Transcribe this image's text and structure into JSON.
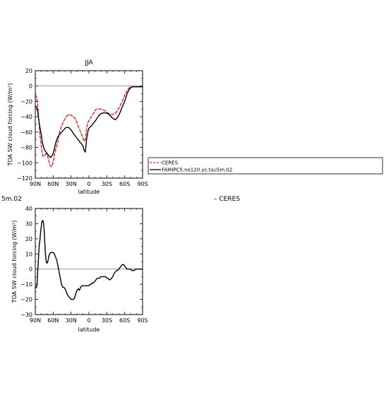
{
  "chart_data": [
    {
      "type": "line",
      "title": "JJA",
      "xlabel": "latitude",
      "ylabel": "TOA SW cloud forcing (W/m²)",
      "xlim": [
        90,
        -90
      ],
      "ylim": [
        -120,
        20
      ],
      "x_ticks": [
        90,
        60,
        30,
        0,
        -30,
        -60,
        -90
      ],
      "x_tick_labels": [
        "90N",
        "60N",
        "30N",
        "0",
        "30S",
        "60S",
        "90S"
      ],
      "y_ticks": [
        -120,
        -100,
        -80,
        -60,
        -40,
        -20,
        0,
        20
      ],
      "y_tick_labels": [
        "−120",
        "−100",
        "−80",
        "−60",
        "−40",
        "−20",
        "0",
        "20"
      ],
      "legend": [
        "CERES",
        "FAMIPC5.ne120.ys.tau5m.02"
      ],
      "series": [
        {
          "name": "CERES",
          "color": "#e8201c",
          "dash": "dashed",
          "x": [
            90,
            88,
            86,
            84,
            82,
            80,
            78,
            76,
            74,
            72,
            70,
            68,
            66,
            64,
            62,
            60,
            58,
            56,
            54,
            52,
            50,
            46,
            42,
            38,
            34,
            30,
            26,
            22,
            18,
            14,
            10,
            8,
            6,
            4,
            2,
            0,
            -4,
            -8,
            -12,
            -16,
            -20,
            -24,
            -28,
            -32,
            -36,
            -40,
            -44,
            -48,
            -52,
            -56,
            -60,
            -64,
            -68,
            -72,
            -76,
            -80,
            -84,
            -88,
            -90
          ],
          "y": [
            -12,
            -14,
            -25,
            -45,
            -65,
            -78,
            -90,
            -92,
            -90,
            -88,
            -90,
            -95,
            -102,
            -105,
            -104,
            -98,
            -90,
            -83,
            -78,
            -72,
            -62,
            -52,
            -45,
            -40,
            -37,
            -38,
            -40,
            -44,
            -52,
            -60,
            -68,
            -72,
            -70,
            -55,
            -48,
            -45,
            -40,
            -35,
            -30,
            -30,
            -30,
            -31,
            -33,
            -35,
            -37,
            -37,
            -36,
            -32,
            -26,
            -20,
            -12,
            -6,
            -2,
            -1,
            -1,
            -1,
            -1,
            -1,
            -1
          ]
        },
        {
          "name": "FAMIPC5.ne120.ys.tau5m.02",
          "color": "#000000",
          "dash": "solid",
          "x": [
            90,
            88,
            86,
            84,
            82,
            80,
            78,
            76,
            74,
            72,
            70,
            68,
            66,
            64,
            62,
            60,
            58,
            56,
            54,
            52,
            50,
            46,
            42,
            40,
            38,
            36,
            34,
            30,
            26,
            22,
            18,
            14,
            10,
            8,
            6,
            4,
            2,
            0,
            -4,
            -8,
            -12,
            -16,
            -20,
            -24,
            -28,
            -32,
            -36,
            -40,
            -44,
            -48,
            -52,
            -56,
            -60,
            -64,
            -68,
            -72,
            -76,
            -80,
            -84,
            -88,
            -90
          ],
          "y": [
            -26,
            -27,
            -33,
            -45,
            -55,
            -63,
            -74,
            -80,
            -84,
            -86,
            -88,
            -90,
            -92,
            -93,
            -91,
            -88,
            -82,
            -75,
            -70,
            -66,
            -64,
            -60,
            -57,
            -55,
            -54,
            -54,
            -54,
            -57,
            -62,
            -66,
            -70,
            -74,
            -78,
            -84,
            -86,
            -70,
            -60,
            -55,
            -52,
            -48,
            -44,
            -39,
            -36,
            -35,
            -35,
            -36,
            -39,
            -42,
            -44,
            -41,
            -35,
            -27,
            -20,
            -10,
            -4,
            -1,
            -1,
            -1,
            -1,
            -1,
            -1
          ]
        }
      ]
    },
    {
      "type": "line",
      "title": "5m.02",
      "title_right": "– CERES",
      "xlabel": "latitude",
      "ylabel": "TOA SW cloud forcing (W/m²)",
      "xlim": [
        90,
        -90
      ],
      "ylim": [
        -30,
        40
      ],
      "x_ticks": [
        90,
        60,
        30,
        0,
        -30,
        -60,
        -90
      ],
      "x_tick_labels": [
        "90N",
        "60N",
        "30N",
        "0",
        "30S",
        "60S",
        "90S"
      ],
      "y_ticks": [
        -30,
        -20,
        -10,
        0,
        10,
        20,
        30,
        40
      ],
      "y_tick_labels": [
        "−30",
        "−20",
        "−10",
        "0",
        "10",
        "20",
        "30",
        "40"
      ],
      "series": [
        {
          "color": "#000000",
          "dash": "solid",
          "x": [
            90,
            89,
            88,
            87,
            86,
            85,
            84,
            83,
            82,
            81,
            80,
            79,
            78,
            77,
            76,
            75,
            74,
            73,
            72,
            71,
            70,
            69,
            68,
            67,
            66,
            64,
            62,
            60,
            58,
            56,
            54,
            52,
            50,
            48,
            46,
            44,
            42,
            40,
            38,
            36,
            34,
            32,
            30,
            28,
            26,
            24,
            22,
            20,
            18,
            16,
            14,
            12,
            10,
            8,
            6,
            4,
            2,
            0,
            -2,
            -4,
            -6,
            -8,
            -10,
            -12,
            -14,
            -16,
            -18,
            -20,
            -22,
            -24,
            -26,
            -28,
            -30,
            -32,
            -34,
            -36,
            -38,
            -40,
            -42,
            -44,
            -46,
            -48,
            -50,
            -52,
            -54,
            -56,
            -58,
            -60,
            -62,
            -64,
            -66,
            -68,
            -70,
            -72,
            -74,
            -76,
            -78,
            -80,
            -82,
            -84,
            -86,
            -88,
            -90
          ],
          "y": [
            -13,
            -12,
            -12,
            -10,
            -2,
            5,
            12,
            17,
            20,
            25,
            28,
            31,
            32,
            32,
            30,
            25,
            17,
            10,
            6,
            4,
            4,
            5,
            7,
            9,
            10,
            11,
            11,
            11,
            10,
            8,
            6,
            2,
            -2,
            -6,
            -10,
            -12,
            -12,
            -13,
            -15,
            -17,
            -18,
            -19,
            -20,
            -20,
            -20,
            -19,
            -16,
            -14,
            -13,
            -14,
            -12,
            -11,
            -11,
            -11,
            -11,
            -11,
            -11,
            -11,
            -10,
            -10,
            -9,
            -9,
            -8,
            -7,
            -6,
            -6,
            -6,
            -5,
            -5,
            -5,
            -5,
            -5,
            -6,
            -6,
            -7,
            -7,
            -6,
            -5,
            -3,
            -2,
            -1,
            -1,
            0,
            1,
            2,
            3,
            3,
            2,
            1,
            0,
            0,
            0,
            0,
            -1,
            -1,
            -1,
            0,
            0,
            0,
            0,
            0,
            0,
            0
          ]
        }
      ]
    }
  ]
}
